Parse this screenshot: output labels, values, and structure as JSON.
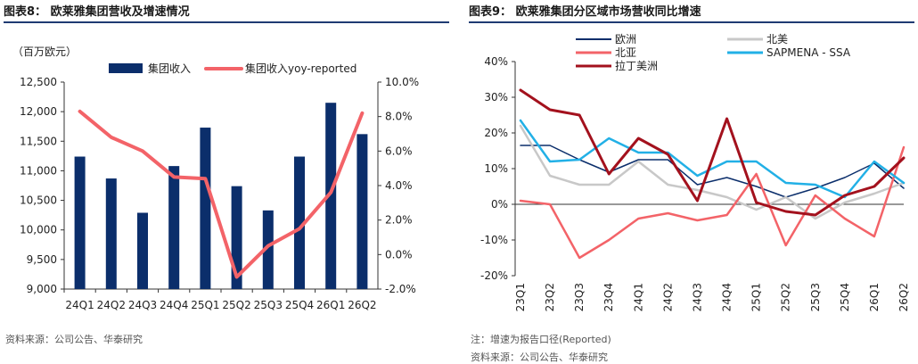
{
  "left": {
    "title": "图表8：  欧莱雅集团营收及增速情况",
    "unit": "（百万欧元）",
    "source": "资料来源：公司公告、华泰研究",
    "chart_data": {
      "type": "bar",
      "categories": [
        "24Q1",
        "24Q2",
        "24Q3",
        "24Q4",
        "25Q1",
        "25Q2",
        "25Q3",
        "25Q4",
        "26Q1",
        "26Q2"
      ],
      "y_left_ticks": [
        "12,500",
        "12,000",
        "11,500",
        "11,000",
        "10,500",
        "10,000",
        "9,500",
        "9,000"
      ],
      "y_right_ticks": [
        "10.0%",
        "8.0%",
        "6.0%",
        "4.0%",
        "2.0%",
        "0.0%",
        "-2.0%"
      ],
      "ylim_left": [
        9000,
        12500
      ],
      "ylim_right": [
        -2.0,
        10.0
      ],
      "legend_placement": "top",
      "colors": {
        "bar": "#0b2e6b",
        "line": "#f36368"
      },
      "series": [
        {
          "name": "集团收入",
          "type": "bar",
          "axis": "left",
          "values": [
            11240,
            10870,
            10290,
            11080,
            11730,
            10740,
            10330,
            11240,
            12150,
            11620
          ]
        },
        {
          "name": "集团收入yoy-reported",
          "type": "line",
          "axis": "right",
          "values": [
            8.3,
            6.8,
            6.0,
            4.5,
            4.4,
            -1.3,
            0.5,
            1.5,
            3.6,
            8.2
          ]
        }
      ]
    }
  },
  "right": {
    "title": "图表9：  欧莱雅集团分区域市场营收同比增速",
    "note": "注：增速为报告口径(Reported)",
    "source": "资料来源：公司公告、华泰研究",
    "chart_data": {
      "type": "line",
      "x": [
        "23Q1",
        "23Q2",
        "23Q3",
        "23Q4",
        "24Q1",
        "24Q2",
        "24Q3",
        "24Q4",
        "25Q1",
        "25Q2",
        "25Q3",
        "25Q4",
        "26Q1",
        "26Q2"
      ],
      "y_ticks": [
        "40%",
        "30%",
        "20%",
        "10%",
        "0%",
        "-10%",
        "-20%"
      ],
      "ylim": [
        -20,
        40
      ],
      "legend_placement": "top",
      "series": [
        {
          "name": "欧洲",
          "color": "#0b2e6b",
          "width": 1.5,
          "values": [
            16.5,
            16.5,
            12.5,
            9.0,
            12.5,
            12.5,
            5.5,
            7.5,
            5.0,
            2.0,
            4.5,
            7.5,
            11.5,
            4.5
          ]
        },
        {
          "name": "北美",
          "color": "#c8c8c8",
          "width": 2.5,
          "values": [
            22.0,
            8.0,
            5.5,
            5.5,
            12.0,
            5.5,
            4.0,
            2.0,
            -1.5,
            2.0,
            -4.0,
            0.5,
            3.0,
            6.0
          ]
        },
        {
          "name": "北亚",
          "color": "#f36368",
          "width": 2.5,
          "values": [
            1.0,
            0.0,
            -15.0,
            -10.0,
            -4.0,
            -2.5,
            -4.5,
            -3.0,
            8.5,
            -11.5,
            2.5,
            -4.0,
            -9.0,
            16.0
          ]
        },
        {
          "name": "SAPMENA - SSA",
          "color": "#22b0e6",
          "width": 2.5,
          "values": [
            23.5,
            12.0,
            12.5,
            18.5,
            14.5,
            14.5,
            8.0,
            12.0,
            12.0,
            6.0,
            5.5,
            2.0,
            12.0,
            6.0
          ]
        },
        {
          "name": "拉丁美洲",
          "color": "#a3111d",
          "width": 3,
          "values": [
            32.0,
            26.5,
            25.0,
            8.5,
            18.5,
            14.0,
            1.0,
            24.0,
            0.5,
            -2.0,
            -3.0,
            2.5,
            5.0,
            13.0
          ]
        }
      ]
    }
  }
}
